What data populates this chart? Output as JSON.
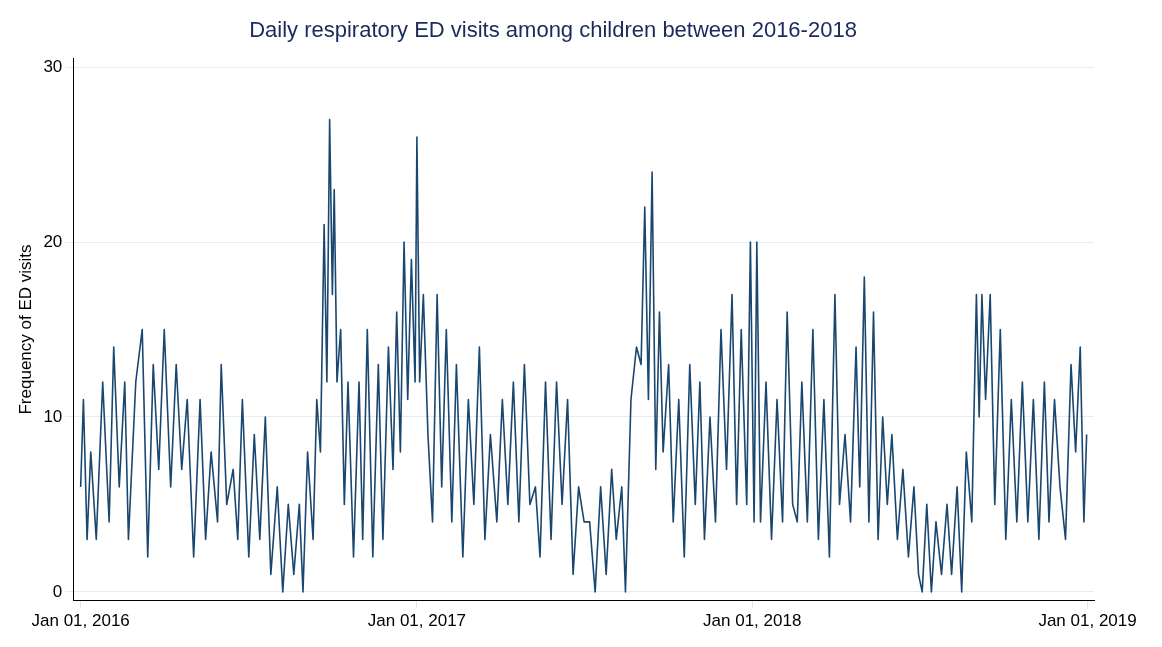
{
  "chart_data": {
    "type": "line",
    "title": "Daily respiratory ED visits among children between 2016-2018",
    "ylabel": "Frequency of ED visits",
    "x": [
      "2016-01-01",
      "2016-01-04",
      "2016-01-08",
      "2016-01-12",
      "2016-01-18",
      "2016-01-25",
      "2016-02-01",
      "2016-02-06",
      "2016-02-12",
      "2016-02-18",
      "2016-02-22",
      "2016-03-01",
      "2016-03-08",
      "2016-03-14",
      "2016-03-20",
      "2016-03-26",
      "2016-04-01",
      "2016-04-08",
      "2016-04-14",
      "2016-04-20",
      "2016-04-26",
      "2016-05-03",
      "2016-05-10",
      "2016-05-16",
      "2016-05-22",
      "2016-05-29",
      "2016-06-02",
      "2016-06-08",
      "2016-06-15",
      "2016-06-20",
      "2016-06-25",
      "2016-07-02",
      "2016-07-08",
      "2016-07-14",
      "2016-07-20",
      "2016-07-26",
      "2016-08-02",
      "2016-08-08",
      "2016-08-14",
      "2016-08-20",
      "2016-08-26",
      "2016-08-30",
      "2016-09-04",
      "2016-09-10",
      "2016-09-14",
      "2016-09-18",
      "2016-09-22",
      "2016-09-25",
      "2016-09-28",
      "2016-10-01",
      "2016-10-03",
      "2016-10-06",
      "2016-10-10",
      "2016-10-14",
      "2016-10-18",
      "2016-10-24",
      "2016-10-30",
      "2016-11-03",
      "2016-11-08",
      "2016-11-14",
      "2016-11-20",
      "2016-11-25",
      "2016-12-01",
      "2016-12-06",
      "2016-12-10",
      "2016-12-14",
      "2016-12-18",
      "2016-12-22",
      "2016-12-26",
      "2016-12-30",
      "2017-01-01",
      "2017-01-04",
      "2017-01-08",
      "2017-01-13",
      "2017-01-18",
      "2017-01-23",
      "2017-01-28",
      "2017-02-02",
      "2017-02-08",
      "2017-02-13",
      "2017-02-20",
      "2017-02-26",
      "2017-03-04",
      "2017-03-10",
      "2017-03-16",
      "2017-03-22",
      "2017-03-29",
      "2017-04-04",
      "2017-04-10",
      "2017-04-16",
      "2017-04-22",
      "2017-04-28",
      "2017-05-04",
      "2017-05-10",
      "2017-05-15",
      "2017-05-21",
      "2017-05-27",
      "2017-06-02",
      "2017-06-08",
      "2017-06-14",
      "2017-06-20",
      "2017-06-26",
      "2017-07-02",
      "2017-07-08",
      "2017-07-14",
      "2017-07-20",
      "2017-07-26",
      "2017-08-01",
      "2017-08-06",
      "2017-08-12",
      "2017-08-16",
      "2017-08-22",
      "2017-08-28",
      "2017-09-02",
      "2017-09-06",
      "2017-09-10",
      "2017-09-14",
      "2017-09-18",
      "2017-09-22",
      "2017-09-26",
      "2017-10-02",
      "2017-10-07",
      "2017-10-13",
      "2017-10-19",
      "2017-10-25",
      "2017-10-31",
      "2017-11-05",
      "2017-11-10",
      "2017-11-16",
      "2017-11-22",
      "2017-11-28",
      "2017-12-04",
      "2017-12-10",
      "2017-12-15",
      "2017-12-20",
      "2017-12-26",
      "2017-12-30",
      "2018-01-03",
      "2018-01-06",
      "2018-01-10",
      "2018-01-16",
      "2018-01-22",
      "2018-01-28",
      "2018-02-03",
      "2018-02-08",
      "2018-02-14",
      "2018-02-19",
      "2018-02-24",
      "2018-03-02",
      "2018-03-08",
      "2018-03-14",
      "2018-03-20",
      "2018-03-26",
      "2018-04-01",
      "2018-04-06",
      "2018-04-12",
      "2018-04-18",
      "2018-04-24",
      "2018-04-28",
      "2018-05-03",
      "2018-05-08",
      "2018-05-13",
      "2018-05-18",
      "2018-05-23",
      "2018-05-28",
      "2018-06-02",
      "2018-06-08",
      "2018-06-14",
      "2018-06-20",
      "2018-06-26",
      "2018-07-01",
      "2018-07-05",
      "2018-07-10",
      "2018-07-15",
      "2018-07-20",
      "2018-07-26",
      "2018-08-01",
      "2018-08-06",
      "2018-08-12",
      "2018-08-17",
      "2018-08-22",
      "2018-08-28",
      "2018-09-02",
      "2018-09-05",
      "2018-09-08",
      "2018-09-12",
      "2018-09-17",
      "2018-09-22",
      "2018-09-28",
      "2018-10-04",
      "2018-10-10",
      "2018-10-16",
      "2018-10-22",
      "2018-10-28",
      "2018-11-03",
      "2018-11-09",
      "2018-11-15",
      "2018-11-20",
      "2018-11-26",
      "2018-12-02",
      "2018-12-08",
      "2018-12-14",
      "2018-12-19",
      "2018-12-24",
      "2018-12-28",
      "2018-12-31"
    ],
    "series": [
      {
        "color": "#1a476f",
        "values": [
          6,
          11,
          3,
          8,
          3,
          12,
          4,
          14,
          6,
          12,
          3,
          12,
          15,
          2,
          13,
          7,
          15,
          6,
          13,
          7,
          11,
          2,
          11,
          3,
          8,
          4,
          13,
          5,
          7,
          3,
          11,
          2,
          9,
          3,
          10,
          1,
          6,
          0,
          5,
          1,
          5,
          0,
          8,
          3,
          11,
          8,
          21,
          12,
          27,
          17,
          23,
          12,
          15,
          5,
          12,
          2,
          12,
          3,
          15,
          2,
          13,
          3,
          14,
          7,
          16,
          8,
          20,
          11,
          19,
          12,
          26,
          12,
          17,
          9,
          4,
          17,
          6,
          15,
          4,
          13,
          2,
          11,
          5,
          14,
          3,
          9,
          4,
          11,
          5,
          12,
          4,
          13,
          5,
          6,
          2,
          12,
          3,
          12,
          5,
          11,
          1,
          6,
          4,
          4,
          0,
          6,
          1,
          7,
          3,
          6,
          0,
          11,
          14,
          13,
          22,
          11,
          24,
          7,
          16,
          8,
          13,
          4,
          11,
          2,
          13,
          5,
          12,
          3,
          10,
          4,
          15,
          7,
          17,
          5,
          15,
          5,
          20,
          4,
          20,
          4,
          12,
          3,
          11,
          4,
          16,
          5,
          4,
          12,
          4,
          15,
          3,
          11,
          2,
          17,
          5,
          9,
          4,
          14,
          6,
          18,
          4,
          16,
          3,
          10,
          5,
          9,
          3,
          7,
          2,
          6,
          1,
          0,
          5,
          0,
          4,
          1,
          5,
          1,
          6,
          0,
          8,
          4,
          17,
          10,
          17,
          11,
          17,
          5,
          15,
          3,
          11,
          4,
          12,
          4,
          11,
          3,
          12,
          4,
          11,
          6,
          3,
          13,
          8,
          14,
          4,
          9
        ]
      }
    ],
    "xlim": [
      "2015-12-24",
      "2019-01-08"
    ],
    "xticks": [
      {
        "value": "2016-01-01",
        "label": "Jan 01, 2016"
      },
      {
        "value": "2017-01-01",
        "label": "Jan 01, 2017"
      },
      {
        "value": "2018-01-01",
        "label": "Jan 01, 2018"
      },
      {
        "value": "2019-01-01",
        "label": "Jan 01, 2019"
      }
    ],
    "ylim": [
      -0.5,
      30.5
    ],
    "yticks": [
      0,
      10,
      20,
      30
    ],
    "grid": "y",
    "marker": "none",
    "line_style": "solid"
  }
}
